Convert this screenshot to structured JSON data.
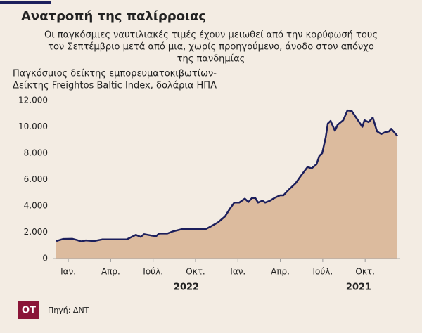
{
  "chart_data": {
    "type": "area",
    "title": "Ανατροπή της παλίρροιας",
    "subtitle": [
      "Οι παγκόσμιες ναυτιλιακές τιμές έχουν μειωθεί από την κορύφωσή τους",
      "τον Σεπτέμβριο μετά από μια, χωρίς προηγούμενο, άνοδο στον απόνχο",
      "της πανδημίας"
    ],
    "axis_label": [
      "Παγκόσμιος δείκτης εμπορευματοκιβωτίων-",
      "Δείκτης Freightos Baltic Index, δολάρια ΗΠΑ"
    ],
    "source": "Πηγή: ΔΝΤ",
    "logo": "OT",
    "years": [
      "2022",
      "2021"
    ],
    "x": [
      -0.85,
      -0.35,
      0.3,
      0.65,
      0.9,
      1.24,
      1.79,
      2.39,
      2.89,
      3.63,
      4.13,
      4.78,
      5.12,
      5.37,
      5.87,
      6.22,
      6.42,
      7.01,
      7.36,
      8.11,
      8.86,
      9.75,
      10.1,
      10.6,
      11.09,
      11.44,
      11.74,
      12.09,
      12.49,
      12.74,
      12.99,
      13.23,
      13.43,
      13.73,
      13.93,
      14.28,
      14.58,
      14.98,
      15.22,
      15.57,
      16.07,
      16.47,
      16.92,
      17.21,
      17.56,
      17.76,
      17.96,
      18.21,
      18.36,
      18.56,
      18.86,
      19.05,
      19.45,
      19.75,
      20.05,
      20.3,
      20.8,
      20.95,
      21.24,
      21.54,
      21.84,
      22.14,
      22.44,
      22.69,
      22.84,
      23.28
    ],
    "values": [
      1330,
      1490,
      1500,
      1400,
      1300,
      1380,
      1330,
      1450,
      1450,
      1450,
      1450,
      1800,
      1650,
      1850,
      1750,
      1700,
      1900,
      1900,
      2050,
      2250,
      2250,
      2250,
      2450,
      2750,
      3200,
      3800,
      4250,
      4250,
      4550,
      4300,
      4600,
      4600,
      4250,
      4400,
      4250,
      4400,
      4600,
      4800,
      4800,
      5200,
      5700,
      6300,
      6950,
      6850,
      7150,
      7800,
      8000,
      9200,
      10250,
      10450,
      9700,
      10150,
      10500,
      11250,
      11200,
      10800,
      10000,
      10500,
      10350,
      10700,
      9650,
      9450,
      9600,
      9650,
      9850,
      9300
    ],
    "line_color": "#1c1f5c",
    "fill_color": "#dcbb9e",
    "xlim": [
      -0.85,
      23.28
    ],
    "xticks": [
      {
        "value": 0,
        "label": "Ιαν."
      },
      {
        "value": 3,
        "label": "Απρ."
      },
      {
        "value": 6,
        "label": "Ιούλ."
      },
      {
        "value": 9,
        "label": "Οκτ."
      },
      {
        "value": 12,
        "label": "Ιαν."
      },
      {
        "value": 15,
        "label": "Απρ."
      },
      {
        "value": 18,
        "label": "Ιούλ."
      },
      {
        "value": 21,
        "label": "Οκτ."
      }
    ],
    "ylim": [
      0,
      12000
    ],
    "yticks": [
      0,
      {
        "value": 2000,
        "label": "2.000"
      },
      {
        "value": 4000,
        "label": "4.000"
      },
      {
        "value": 6000,
        "label": "6.000"
      },
      {
        "value": 8000,
        "label": "8.000"
      },
      {
        "value": 10000,
        "label": "10.000"
      },
      {
        "value": 12000,
        "label": "12.000"
      }
    ],
    "grid": false
  }
}
